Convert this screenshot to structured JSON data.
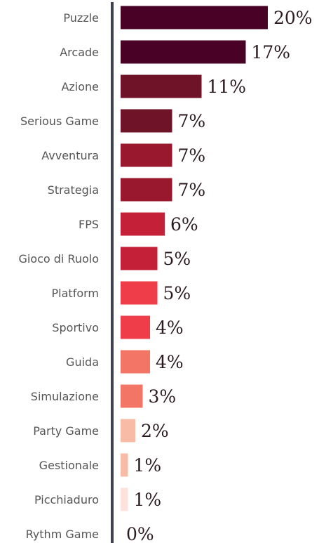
{
  "chart_data": {
    "type": "bar",
    "orientation": "horizontal",
    "categories": [
      "Puzzle",
      "Arcade",
      "Azione",
      "Serious Game",
      "Avventura",
      "Strategia",
      "FPS",
      "Gioco di Ruolo",
      "Platform",
      "Sportivo",
      "Guida",
      "Simulazione",
      "Party Game",
      "Gestionale",
      "Picchiaduro",
      "Rythm Game"
    ],
    "values": [
      20,
      17,
      11,
      7,
      7,
      7,
      6,
      5,
      5,
      4,
      4,
      3,
      2,
      1,
      1,
      0
    ],
    "value_labels": [
      "20%",
      "17%",
      "11%",
      "7%",
      "7%",
      "7%",
      "6%",
      "5%",
      "5%",
      "4%",
      "4%",
      "3%",
      "2%",
      "1%",
      "1%",
      "0%"
    ],
    "colors": [
      "#4a0126",
      "#4a0126",
      "#6e1328",
      "#6e1328",
      "#99182d",
      "#99182d",
      "#c42139",
      "#c42139",
      "#ef3e4a",
      "#ef3e4a",
      "#f27565",
      "#f27565",
      "#f8bba6",
      "#f8bba6",
      "#fde3dc",
      "#fde3dc"
    ],
    "axis_color": "#3d4150",
    "xlim": [
      0,
      20
    ],
    "grid": false,
    "legend": "none"
  }
}
